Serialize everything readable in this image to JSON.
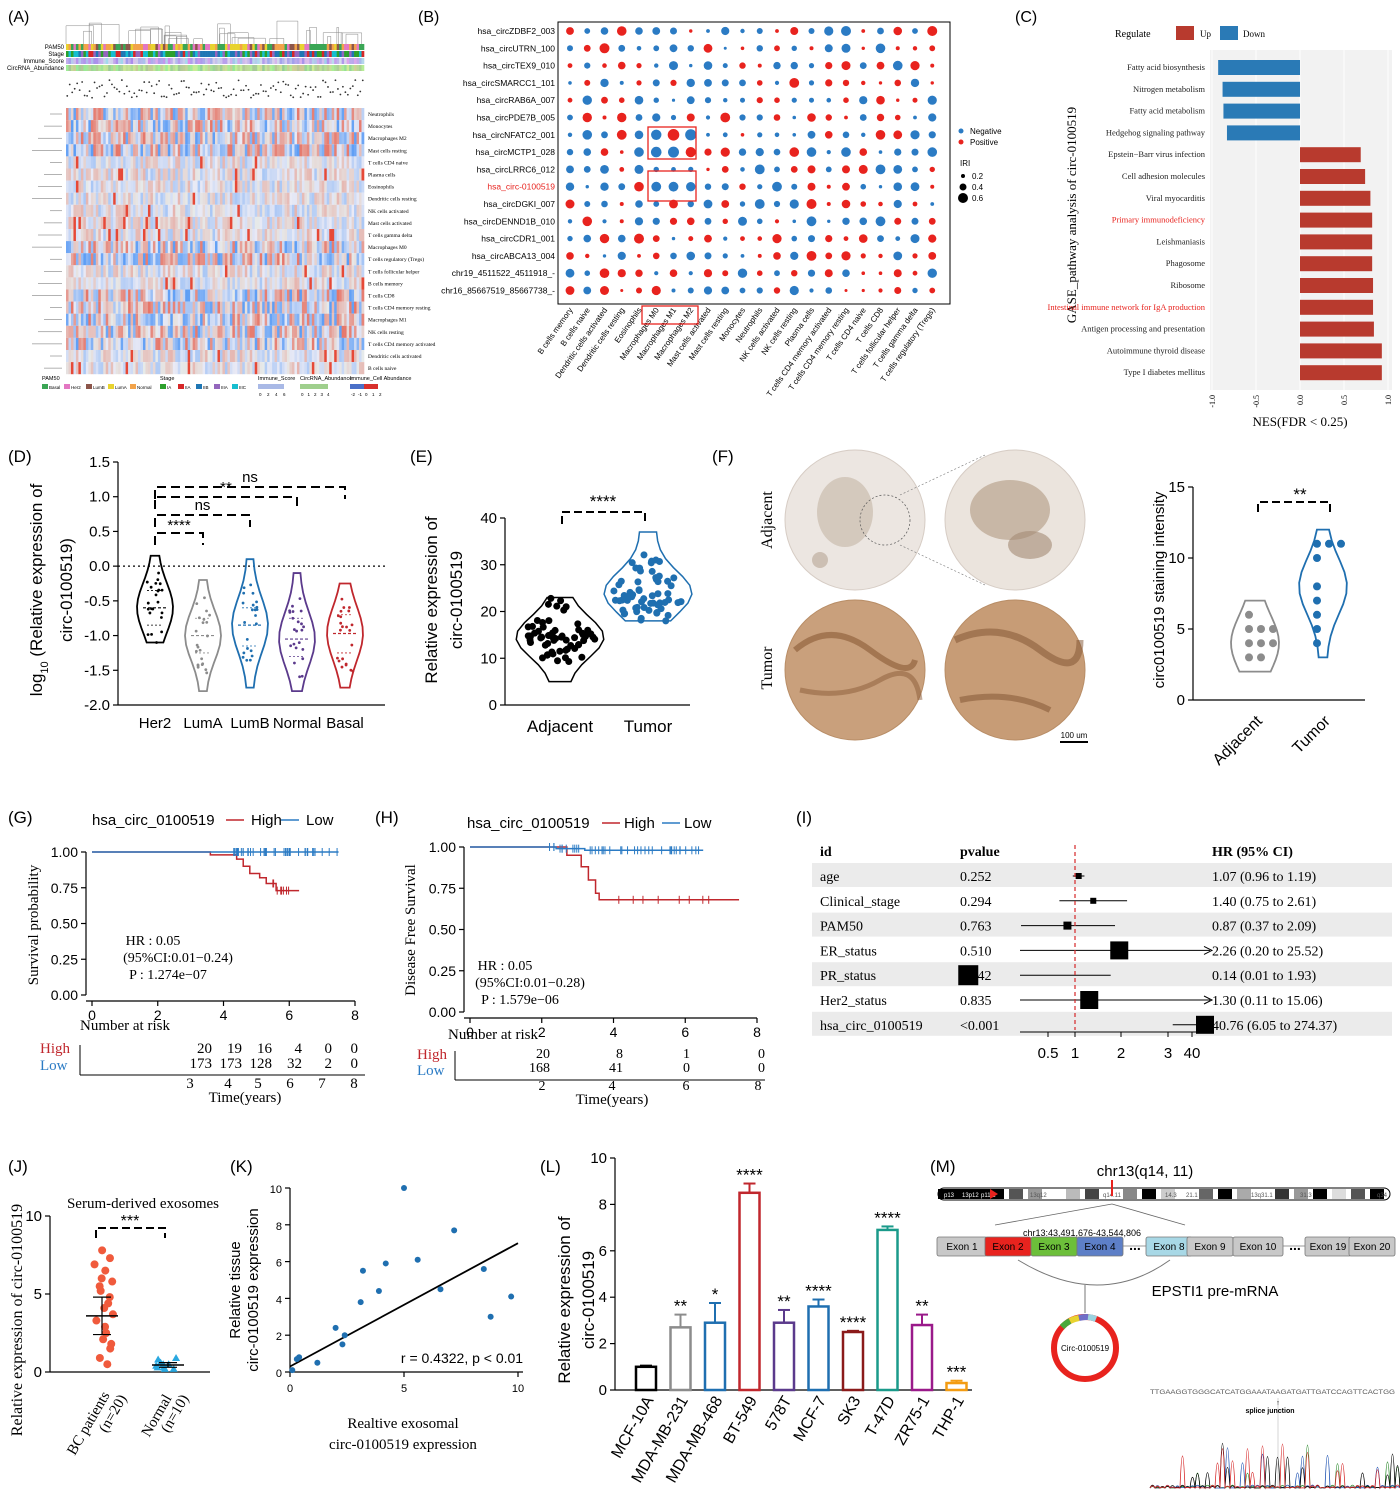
{
  "panels": {
    "A": {
      "letter": "(A)",
      "track_labels": [
        "PAM50",
        "Stage",
        "Immune_Score",
        "CircRNA_Abundance"
      ],
      "rows": [
        "Neutrophils",
        "Monocytes",
        "Macrophages M2",
        "Mast cells resting",
        "T cells CD4 naive",
        "Plasma cells",
        "Eosinophils",
        "Dendritic cells resting",
        "NK cells activated",
        "Mast cells activated",
        "T cells gamma delta",
        "Macrophages M0",
        "T cells regulatory (Tregs)",
        "T cells follicular helper",
        "B cells memory",
        "T cells CD8",
        "T cells CD4 memory resting",
        "Macrophages M1",
        "NK cells resting",
        "T cells CD4 memory activated",
        "Dendritic cells activated",
        "B cells naive"
      ],
      "legend": {
        "pam50_title": "PAM50",
        "pam50": [
          "Basal",
          "Her2",
          "LumB",
          "LumA",
          "Normal"
        ],
        "pam50_colors": [
          "#3aa655",
          "#e377c2",
          "#8c564b",
          "#e8d32f",
          "#f2a34a"
        ],
        "stage_title": "Stage",
        "stage": [
          "IA",
          "IIA",
          "IIB",
          "IIIA",
          "IIIC"
        ],
        "stage_colors": [
          "#2ca02c",
          "#d62728",
          "#1f77b4",
          "#9467bd",
          "#17becf"
        ],
        "immune_title": "Immune_Score",
        "immune_ticks": [
          "0",
          "2",
          "4",
          "6"
        ],
        "circ_title": "CircRNA_Abundance",
        "circ_ticks": [
          "0",
          "1",
          "2",
          "3",
          "4"
        ],
        "cell_title": "Immune_Cell Abundance",
        "cell_ticks": [
          "-2",
          "-1",
          "0",
          "1",
          "2"
        ]
      }
    },
    "B": {
      "letter": "(B)",
      "rows": [
        "hsa_circZDBF2_003",
        "hsa_circUTRN_100",
        "hsa_circTEX9_010",
        "hsa_circSMARCC1_101",
        "hsa_circRAB6A_007",
        "hsa_circPDE7B_005",
        "hsa_circNFATC2_001",
        "hsa_circMCTP1_028",
        "hsa_circLRRC6_012",
        "hsa_circ-0100519",
        "hsa_circDGKI_007",
        "hsa_circDENND1B_010",
        "hsa_circCDR1_001",
        "hsa_circABCA13_004",
        "chr19_4511522_4511918_-",
        "chr16_85667519_85667738_-"
      ],
      "cols": [
        "B cells memory",
        "B cells naive",
        "Dendritic cells activated",
        "Dendritic cells resting",
        "Eosinophils",
        "Macrophages M0",
        "Macrophages M1",
        "Macrophages M2",
        "Mast cells activated",
        "Mast cells resting",
        "Monocytes",
        "Neutrophils",
        "NK cells activated",
        "NK cells resting",
        "Plasma cells",
        "T cells CD4 memory activated",
        "T cells CD4 memory resting",
        "T cells CD4 naive",
        "T cells CD8",
        "T cells follicular helper",
        "T cells gamma delta",
        "T cells regulatory (Tregs)"
      ],
      "legend_negative": "Negative",
      "legend_positive": "Positive",
      "size_title": "IRI",
      "size_values": [
        "0.2",
        "0.4",
        "0.6"
      ],
      "colors": {
        "negative": "#2b7bc4",
        "positive": "#e8231e"
      }
    },
    "C": {
      "letter": "(C)",
      "legend_title": "Regulate",
      "legend_up": "Up",
      "legend_down": "Down",
      "ylabel": "GASE_pathway analysis of circ-0100519",
      "xlabel": "NES(FDR < 0.25)",
      "xticks": [
        "-1.0",
        "-0.5",
        "0.0",
        "0.5",
        "1.0"
      ],
      "colors": {
        "up": "#b83a2e",
        "down": "#2a7ab6",
        "highlight": "#e8231e"
      }
    },
    "D": {
      "letter": "(D)",
      "ylabel_a": "log",
      "ylabel_sub": "10",
      "ylabel_b": " (Relative expression of",
      "ylabel_c": "circ-0100519)",
      "yticks": [
        "1.5",
        "1.0",
        "0.5",
        "0.0",
        "-0.5",
        "-1.0",
        "-1.5",
        "-2.0"
      ],
      "sig": [
        "ns",
        "**",
        "ns",
        "****"
      ]
    },
    "E": {
      "letter": "(E)",
      "ylabel_a": "Relative expression of",
      "ylabel_b": "circ-0100519",
      "yticks": [
        "40",
        "30",
        "20",
        "10",
        "0"
      ],
      "sig": "****"
    },
    "F": {
      "letter": "(F)",
      "row_adjacent": "Adjacent",
      "row_tumor": "Tumor",
      "scale": "100 um",
      "ylabel": "circ0100519 staining intensity",
      "yticks": [
        "15",
        "10",
        "5",
        "0"
      ],
      "sig": "**",
      "xcat": [
        "Adjacent",
        "Tumor"
      ]
    },
    "G": {
      "letter": "(G)",
      "legend_name": "hsa_circ_0100519",
      "legend_high": "High",
      "legend_low": "Low",
      "ylabel": "Survival probability",
      "yticks": [
        "1.00",
        "0.75",
        "0.50",
        "0.25",
        "0.00"
      ],
      "xticks": [
        "0",
        "2",
        "4",
        "6",
        "8"
      ],
      "hr": "HR : 0.05",
      "ci": "(95%CI:0.01−0.24)",
      "p": "P : 1.274e−07",
      "risk_title": "Number at risk",
      "risk_high_label": "High",
      "risk_low_label": "Low",
      "risk_high": [
        "20",
        "19",
        "16",
        "4",
        "0",
        "0"
      ],
      "risk_low": [
        "173",
        "173",
        "128",
        "32",
        "2",
        "0"
      ],
      "risk_x": [
        "3",
        "4",
        "5",
        "6",
        "7",
        "8"
      ],
      "xlabel": "Time(years)"
    },
    "H": {
      "letter": "(H)",
      "legend_name": "hsa_circ_0100519",
      "legend_high": "High",
      "legend_low": "Low",
      "ylabel": "Disease Free Survival",
      "yticks": [
        "1.00",
        "0.75",
        "0.50",
        "0.25",
        "0.00"
      ],
      "xticks": [
        "0",
        "2",
        "4",
        "6",
        "8"
      ],
      "hr": "HR : 0.05",
      "ci": "(95%CI:0.01−0.28)",
      "p": "P : 1.579e−06",
      "risk_title": "Number at risk",
      "risk_high_label": "High",
      "risk_low_label": "Low",
      "risk_high": [
        "20",
        "8",
        "1",
        "0"
      ],
      "risk_low": [
        "168",
        "41",
        "0",
        "0"
      ],
      "risk_x": [
        "2",
        "4",
        "6",
        "8"
      ],
      "xlabel": "Time(years)"
    },
    "I": {
      "letter": "(I)",
      "h_id": "id",
      "h_p": "pvalue",
      "h_hr": "HR (95% CI)",
      "rows": [
        {
          "id": "age",
          "p": "0.252",
          "hr": "1.07 (0.96 to 1.19)"
        },
        {
          "id": "Clinical_stage",
          "p": "0.294",
          "hr": "1.40 (0.75 to 2.61)"
        },
        {
          "id": "PAM50",
          "p": "0.763",
          "hr": "0.87 (0.37 to 2.09)"
        },
        {
          "id": "ER_status",
          "p": "0.510",
          "hr": "2.26 (0.20 to 25.52)"
        },
        {
          "id": "PR_status",
          "p": "0.142",
          "hr": "0.14 (0.01 to 1.93)"
        },
        {
          "id": "Her2_status",
          "p": "0.835",
          "hr": "1.30 (0.11 to 15.06)"
        },
        {
          "id": "hsa_circ_0100519",
          "p": "<0.001",
          "hr": "40.76 (6.05 to 274.37)"
        }
      ],
      "xticks": [
        "0.5",
        "1",
        "2",
        "3",
        "40"
      ]
    },
    "J": {
      "letter": "(J)",
      "title": "Serum-derived exosomes",
      "ylabel": "Relative  expression of circ-0100519",
      "yticks": [
        "10",
        "5",
        "0"
      ],
      "sig": "***",
      "xcat": [
        "BC patients",
        "(n=20)",
        "Normal",
        "(n=10)"
      ]
    },
    "K": {
      "letter": "(K)",
      "ylabel_a": "Relative tissue",
      "ylabel_b": "circ-0100519 expression",
      "xlabel_a": "Realtive exosomal",
      "xlabel_b": "circ-0100519 expression",
      "yticks": [
        "10",
        "8",
        "6",
        "4",
        "2",
        "0"
      ],
      "xticks": [
        "0",
        "5",
        "10"
      ],
      "stat": "r = 0.4322, p < 0.01"
    },
    "L": {
      "letter": "(L)",
      "ylabel_a": "Relative expression of",
      "ylabel_b": "circ-0100519",
      "yticks": [
        "10",
        "8",
        "6",
        "4",
        "2",
        "0"
      ]
    },
    "M": {
      "letter": "(M)",
      "chr": "chr13(q14, 11)",
      "coord": "chr13:43,491,676-43,544,806",
      "bands": [
        "p13",
        "13p12",
        "p11.2",
        "13q12",
        "q14.11",
        "14.3",
        "21.1",
        "13q31.1",
        "31.3",
        "q34"
      ],
      "exons": [
        "Exon 1",
        "Exon 2",
        "Exon 3",
        "Exon 4",
        "...",
        "Exon 8",
        "Exon 9",
        "Exon 10",
        "...",
        "Exon 19",
        "Exon 20"
      ],
      "gene": "EPSTI1 pre-mRNA",
      "circ": "Circ-0100519",
      "junction": "splice junction",
      "seq": "TTGAAGGTGGGCATCATGGAAATAAGATGATTGATCCAGTTCACTGG"
    }
  },
  "chart_data": [
    {
      "panel": "C",
      "type": "bar",
      "orientation": "horizontal",
      "categories": [
        "Fatty acid biosynthesis",
        "Nitrogen metabolism",
        "Fatty acid metabolism",
        "Hedgehog signaling pathway",
        "Epstein−Barr virus infection",
        "Cell adhesion molecules",
        "Viral myocarditis",
        "Primary immunodeficiency",
        "Leishmaniasis",
        "Phagosome",
        "Ribosome",
        "Intestinal immune network for IgA production",
        "Antigen processing and presentation",
        "Autoimmune thyroid disease",
        "Type I diabetes mellitus"
      ],
      "values": [
        -0.93,
        -0.88,
        -0.87,
        -0.83,
        0.69,
        0.74,
        0.8,
        0.82,
        0.82,
        0.82,
        0.83,
        0.83,
        0.84,
        0.93,
        0.93
      ],
      "highlight": [
        "Primary immunodeficiency",
        "Intestinal immune network for IgA production"
      ],
      "xlim": [
        -1.05,
        1.05
      ]
    },
    {
      "panel": "D",
      "type": "violin",
      "categories": [
        "Her2",
        "LumA",
        "LumB",
        "Normal",
        "Basal"
      ],
      "colors": [
        "#000000",
        "#8c8c8c",
        "#1f6fb0",
        "#5b3a8c",
        "#c0272d"
      ],
      "median": [
        -0.6,
        -1.0,
        -0.85,
        -1.05,
        -0.97
      ],
      "q1": [
        -0.85,
        -1.25,
        -1.15,
        -1.3,
        -1.25
      ],
      "q3": [
        -0.35,
        -0.75,
        -0.6,
        -0.75,
        -0.7
      ],
      "min": [
        -1.1,
        -1.8,
        -1.75,
        -1.8,
        -1.75
      ],
      "max": [
        0.15,
        -0.2,
        0.1,
        -0.1,
        -0.25
      ],
      "ylim": [
        -2.0,
        1.5
      ]
    },
    {
      "panel": "E",
      "type": "scatter",
      "categories": [
        "Adjacent",
        "Tumor"
      ],
      "means": [
        14.5,
        24
      ],
      "ranges": [
        [
          5,
          23
        ],
        [
          18,
          37
        ]
      ],
      "n": [
        60,
        60
      ],
      "ylim": [
        0,
        40
      ],
      "colors": [
        "#000000",
        "#1f6fb0"
      ]
    },
    {
      "panel": "F",
      "type": "violin",
      "categories": [
        "Adjacent",
        "Tumor"
      ],
      "points": [
        [
          5,
          5,
          4,
          4,
          3,
          5,
          6,
          4,
          3
        ],
        [
          11,
          11,
          11,
          10,
          8,
          7,
          6,
          5,
          4
        ]
      ],
      "ylim": [
        0,
        15
      ],
      "colors": [
        "#8c8c8c",
        "#1f6fb0"
      ]
    },
    {
      "panel": "G",
      "type": "line",
      "xlim": [
        0,
        8
      ],
      "ylim": [
        0,
        1
      ],
      "series": [
        {
          "name": "High",
          "x": [
            0,
            3.6,
            4.4,
            4.6,
            4.8,
            5.1,
            5.3,
            5.6,
            6.3
          ],
          "y": [
            1,
            0.98,
            0.95,
            0.9,
            0.85,
            0.82,
            0.78,
            0.73,
            0.73
          ]
        },
        {
          "name": "Low",
          "x": [
            0,
            7.5
          ],
          "y": [
            1,
            1
          ]
        }
      ]
    },
    {
      "panel": "H",
      "type": "line",
      "xlim": [
        0,
        8
      ],
      "ylim": [
        0,
        1
      ],
      "series": [
        {
          "name": "High",
          "x": [
            0,
            2.7,
            3.1,
            3.3,
            3.5,
            3.6,
            7.5
          ],
          "y": [
            1,
            0.95,
            0.88,
            0.8,
            0.72,
            0.68,
            0.68
          ]
        },
        {
          "name": "Low",
          "x": [
            0,
            2.4,
            3.2,
            6.5
          ],
          "y": [
            1,
            0.99,
            0.98,
            0.98
          ]
        }
      ]
    },
    {
      "panel": "I",
      "type": "forest",
      "labels": [
        "age",
        "Clinical_stage",
        "PAM50",
        "ER_status",
        "PR_status",
        "Her2_status",
        "hsa_circ_0100519"
      ],
      "hr": [
        1.07,
        1.4,
        0.87,
        2.26,
        0.14,
        1.3,
        40.76
      ],
      "lo": [
        0.96,
        0.75,
        0.37,
        0.2,
        0.01,
        0.11,
        6.05
      ],
      "hi": [
        1.19,
        2.61,
        2.09,
        25.52,
        1.93,
        15.06,
        274.37
      ]
    },
    {
      "panel": "J",
      "type": "scatter",
      "categories": [
        "BC patients (n=20)",
        "Normal (n=10)"
      ],
      "values": [
        [
          7.8,
          7.3,
          6.9,
          6.5,
          6.0,
          5.8,
          5.5,
          5.2,
          4.8,
          4.4,
          4.1,
          3.7,
          3.3,
          2.9,
          2.5,
          2.1,
          1.8,
          1.5,
          0.9,
          0.5
        ],
        [
          0.9,
          0.8,
          0.6,
          0.5,
          0.5,
          0.4,
          0.3,
          0.3,
          0.2,
          0.2
        ]
      ],
      "means": [
        3.6,
        0.45
      ],
      "ylim": [
        0,
        10
      ],
      "colors": [
        "#f05a3c",
        "#2aa8e0"
      ]
    },
    {
      "panel": "K",
      "type": "scatter",
      "xlim": [
        0,
        10
      ],
      "ylim": [
        0,
        10
      ],
      "x": [
        0.1,
        0.3,
        0.4,
        1.2,
        2.0,
        2.3,
        2.4,
        3.1,
        3.2,
        3.9,
        4.2,
        5.0,
        5.6,
        6.6,
        7.2,
        8.5,
        8.8,
        9.7
      ],
      "y": [
        0.1,
        0.7,
        0.8,
        0.5,
        2.4,
        1.5,
        2.0,
        3.8,
        5.5,
        4.4,
        5.9,
        10.0,
        6.1,
        4.5,
        7.7,
        5.6,
        3.0,
        4.1
      ],
      "fit": {
        "x": [
          0,
          10
        ],
        "y": [
          0.3,
          7.0
        ]
      }
    },
    {
      "panel": "L",
      "type": "bar",
      "categories": [
        "MCF-10A",
        "MDA-MB-231",
        "MDA-MB-468",
        "BT-549",
        "578T",
        "MCF-7",
        "SK3",
        "T-47D",
        "ZR75-1",
        "THP-1"
      ],
      "values": [
        1.0,
        2.7,
        2.9,
        8.5,
        2.9,
        3.6,
        2.5,
        6.9,
        2.8,
        0.3
      ],
      "errors": [
        0.05,
        0.55,
        0.85,
        0.4,
        0.55,
        0.3,
        0.05,
        0.15,
        0.45,
        0.1
      ],
      "sig": [
        "",
        "**",
        "*",
        "****",
        "**",
        "****",
        "****",
        "****",
        "**",
        "***"
      ],
      "colors": [
        "#000000",
        "#8c8c8c",
        "#1f6fb0",
        "#c0272d",
        "#5b3a8c",
        "#1f6fb0",
        "#8b1a1a",
        "#1a9a8a",
        "#9a1a8a",
        "#f39c12"
      ],
      "ylim": [
        0,
        10
      ]
    }
  ]
}
